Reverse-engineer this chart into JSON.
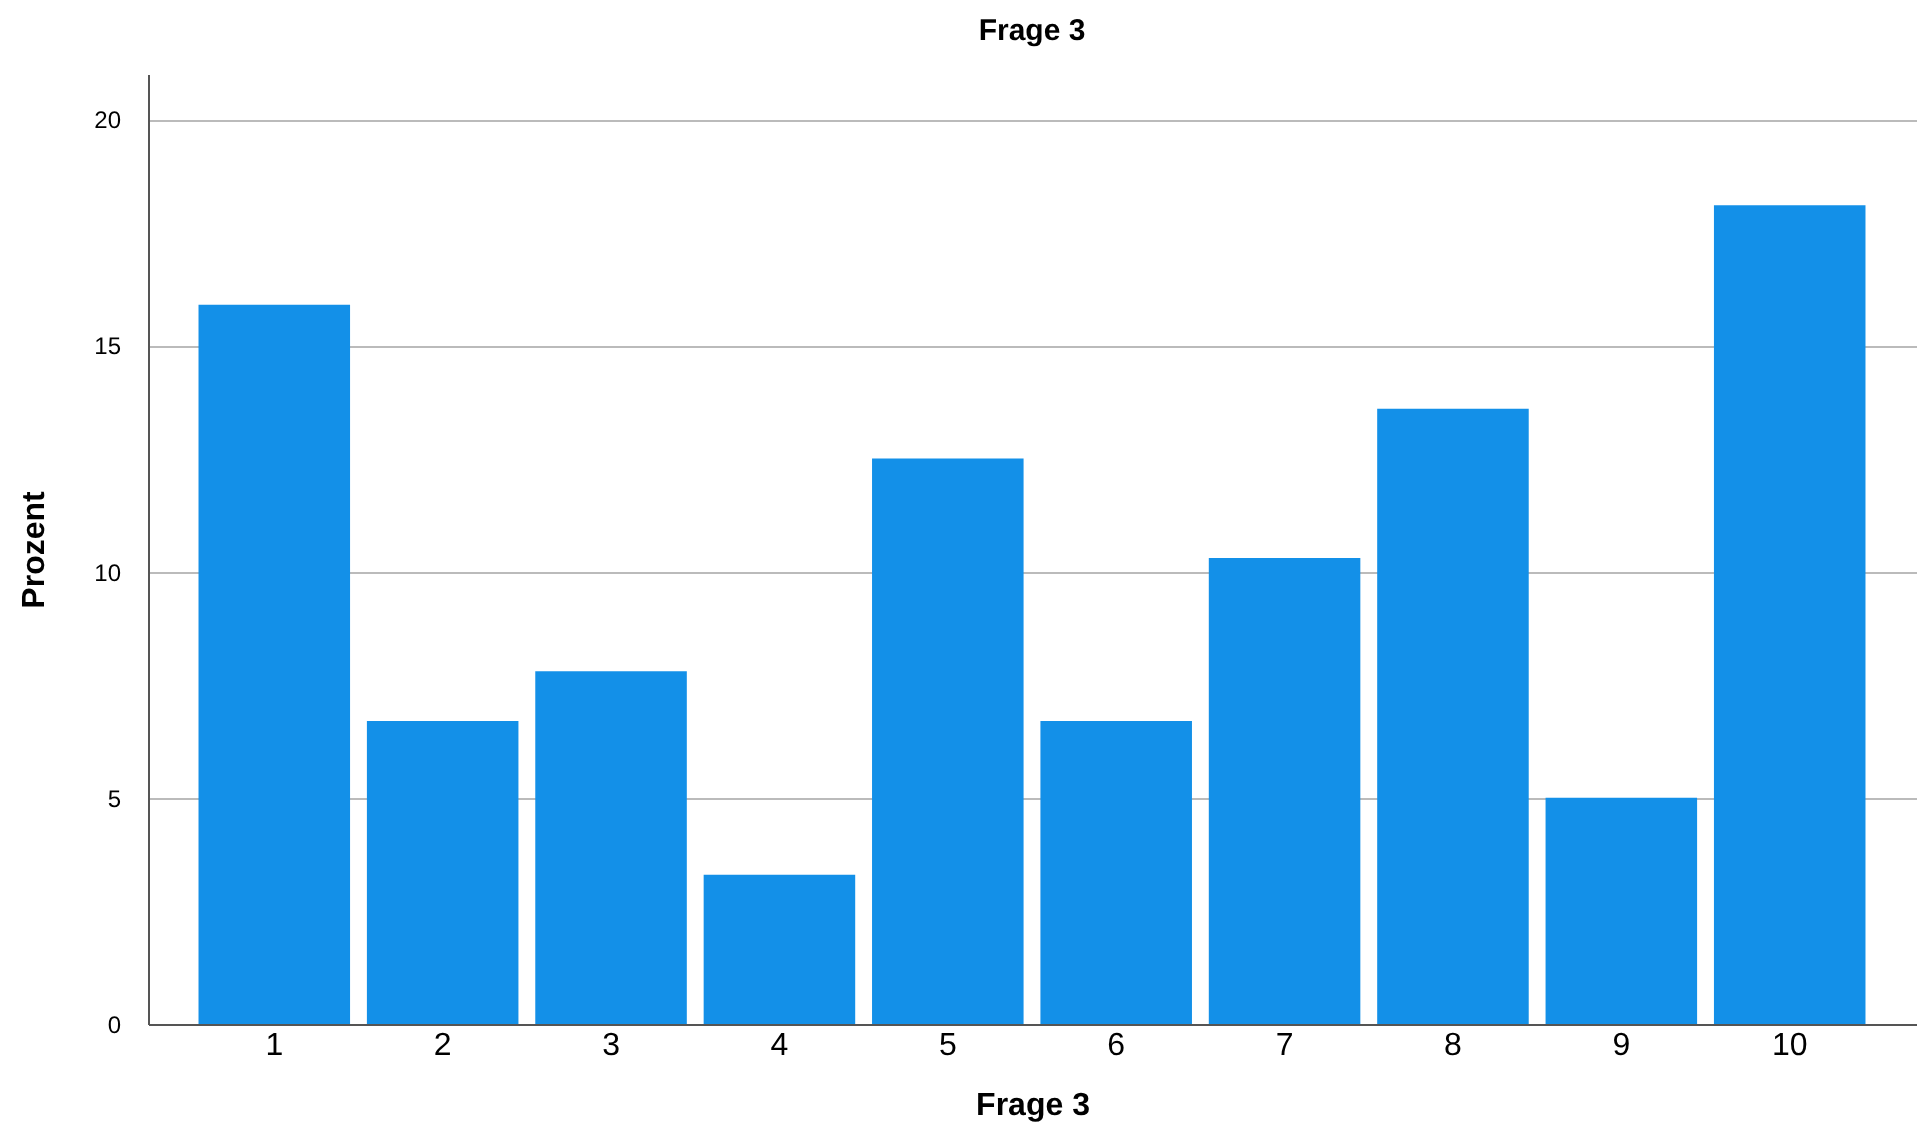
{
  "chart_data": {
    "type": "bar",
    "title": "Frage 3",
    "xlabel": "Frage 3",
    "ylabel": "Prozent",
    "categories": [
      "1",
      "2",
      "3",
      "4",
      "5",
      "6",
      "7",
      "8",
      "9",
      "10"
    ],
    "values": [
      15.9,
      6.7,
      7.8,
      3.3,
      12.5,
      6.7,
      10.3,
      13.6,
      5.0,
      18.1
    ],
    "color": "#1390e8",
    "ylim": [
      0,
      21
    ],
    "yticks": [
      0,
      5,
      10,
      15,
      20
    ],
    "grid": "y"
  }
}
